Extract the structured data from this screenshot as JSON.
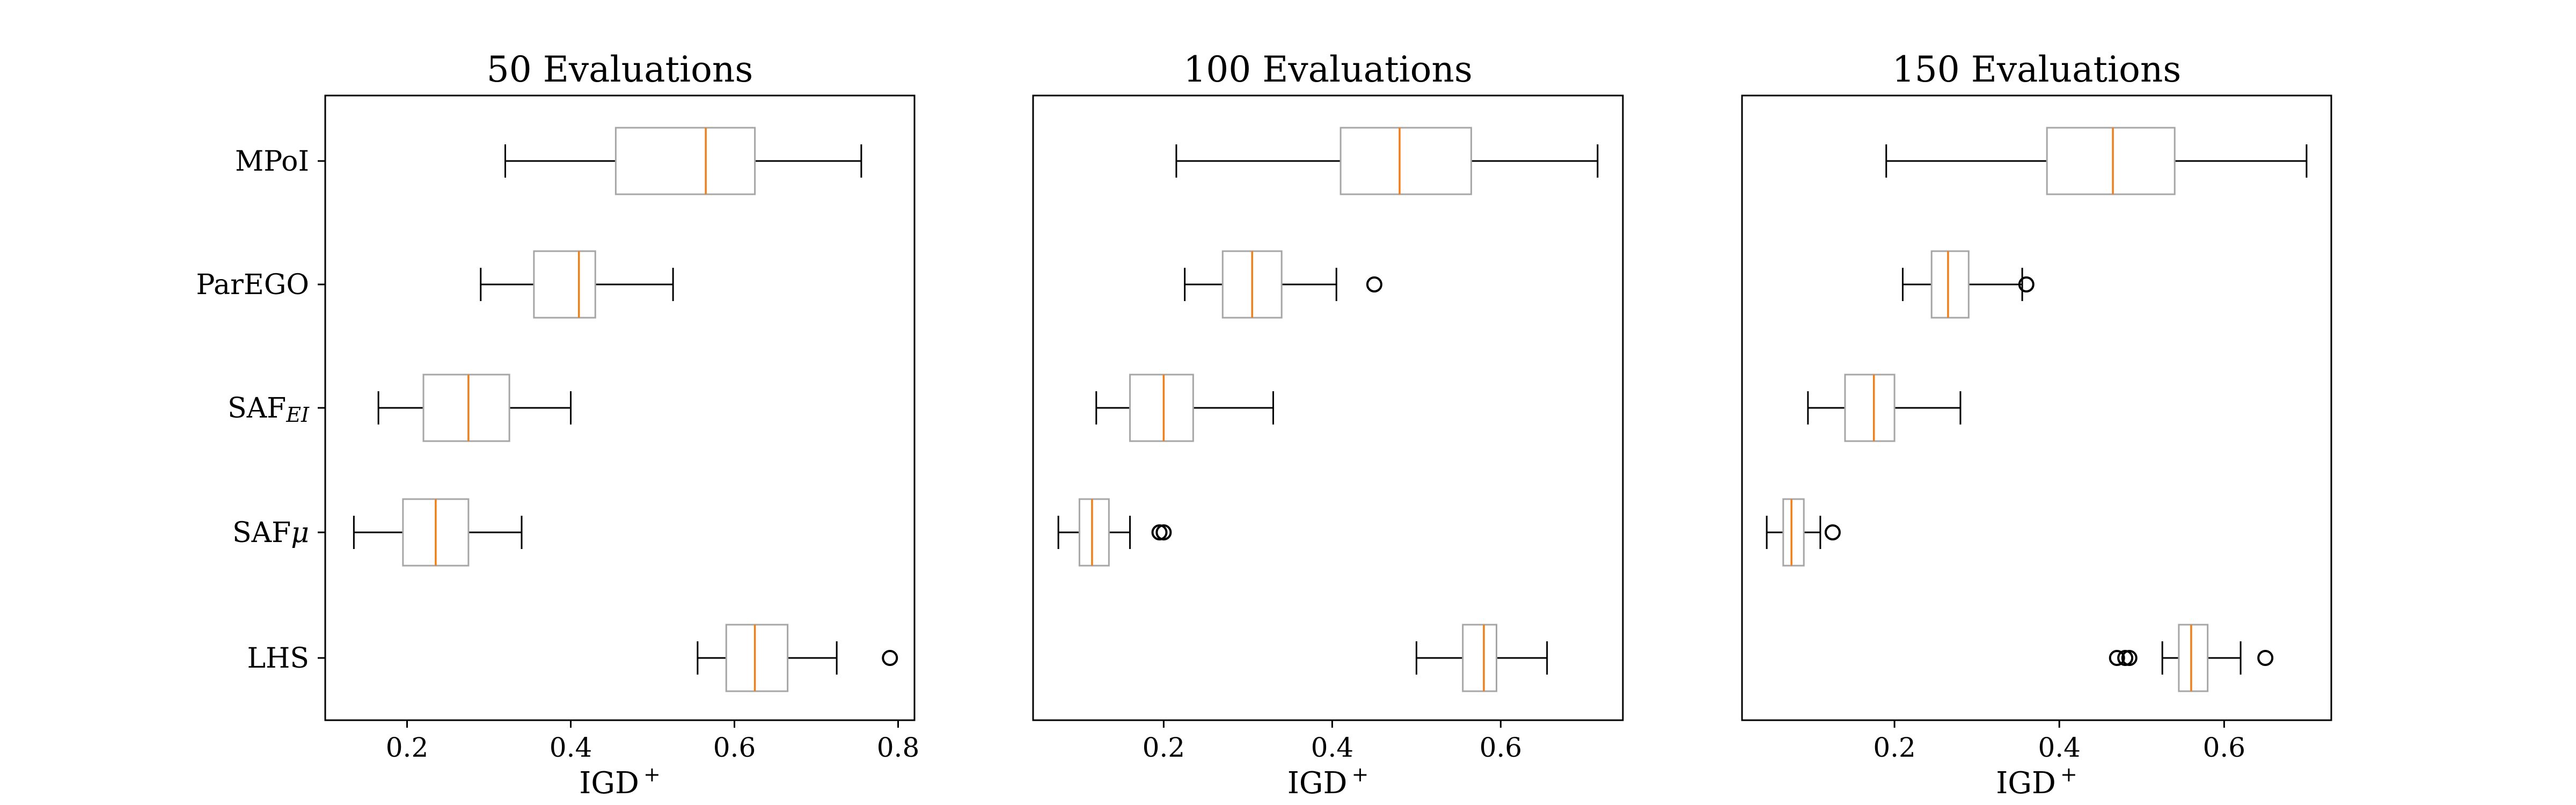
{
  "chart_data": [
    {
      "type": "boxplot",
      "title": "50 Evaluations",
      "xlabel": "IGD",
      "xlabel_sup": "+",
      "xlim": [
        0.1,
        0.82
      ],
      "xticks": [
        0.2,
        0.4,
        0.6,
        0.8
      ],
      "xtick_labels": [
        "0.2",
        "0.4",
        "0.6",
        "0.8"
      ],
      "show_categories": true,
      "series": [
        {
          "name": "MPoI",
          "whisker_low": 0.32,
          "q1": 0.455,
          "median": 0.565,
          "q3": 0.625,
          "whisker_high": 0.755,
          "outliers": []
        },
        {
          "name": "ParEGO",
          "whisker_low": 0.29,
          "q1": 0.355,
          "median": 0.41,
          "q3": 0.43,
          "whisker_high": 0.525,
          "outliers": []
        },
        {
          "name": "SAF",
          "sub": "EI",
          "whisker_low": 0.165,
          "q1": 0.22,
          "median": 0.275,
          "q3": 0.325,
          "whisker_high": 0.4,
          "outliers": []
        },
        {
          "name": "SAF",
          "sub": "μ",
          "whisker_low": 0.135,
          "q1": 0.195,
          "median": 0.235,
          "q3": 0.275,
          "whisker_high": 0.34,
          "outliers": []
        },
        {
          "name": "LHS",
          "whisker_low": 0.555,
          "q1": 0.59,
          "median": 0.625,
          "q3": 0.665,
          "whisker_high": 0.725,
          "outliers": [
            0.79
          ]
        }
      ]
    },
    {
      "type": "boxplot",
      "title": "100 Evaluations",
      "xlabel": "IGD",
      "xlabel_sup": "+",
      "xlim": [
        0.045,
        0.745
      ],
      "xticks": [
        0.2,
        0.4,
        0.6
      ],
      "xtick_labels": [
        "0.2",
        "0.4",
        "0.6"
      ],
      "show_categories": false,
      "series": [
        {
          "name": "MPoI",
          "whisker_low": 0.215,
          "q1": 0.41,
          "median": 0.48,
          "q3": 0.565,
          "whisker_high": 0.715,
          "outliers": []
        },
        {
          "name": "ParEGO",
          "whisker_low": 0.225,
          "q1": 0.27,
          "median": 0.305,
          "q3": 0.34,
          "whisker_high": 0.405,
          "outliers": [
            0.45
          ]
        },
        {
          "name": "SAF",
          "sub": "EI",
          "whisker_low": 0.12,
          "q1": 0.16,
          "median": 0.2,
          "q3": 0.235,
          "whisker_high": 0.33,
          "outliers": []
        },
        {
          "name": "SAF",
          "sub": "μ",
          "whisker_low": 0.075,
          "q1": 0.1,
          "median": 0.115,
          "q3": 0.135,
          "whisker_high": 0.16,
          "outliers": [
            0.195,
            0.2
          ]
        },
        {
          "name": "LHS",
          "whisker_low": 0.5,
          "q1": 0.555,
          "median": 0.58,
          "q3": 0.595,
          "whisker_high": 0.655,
          "outliers": []
        }
      ]
    },
    {
      "type": "boxplot",
      "title": "150 Evaluations",
      "xlabel": "IGD",
      "xlabel_sup": "+",
      "xlim": [
        0.015,
        0.73
      ],
      "xticks": [
        0.2,
        0.4,
        0.6
      ],
      "xtick_labels": [
        "0.2",
        "0.4",
        "0.6"
      ],
      "show_categories": false,
      "series": [
        {
          "name": "MPoI",
          "whisker_low": 0.19,
          "q1": 0.385,
          "median": 0.465,
          "q3": 0.54,
          "whisker_high": 0.7,
          "outliers": []
        },
        {
          "name": "ParEGO",
          "whisker_low": 0.21,
          "q1": 0.245,
          "median": 0.265,
          "q3": 0.29,
          "whisker_high": 0.355,
          "outliers": [
            0.36
          ]
        },
        {
          "name": "SAF",
          "sub": "EI",
          "whisker_low": 0.095,
          "q1": 0.14,
          "median": 0.175,
          "q3": 0.2,
          "whisker_high": 0.28,
          "outliers": []
        },
        {
          "name": "SAF",
          "sub": "μ",
          "whisker_low": 0.045,
          "q1": 0.065,
          "median": 0.075,
          "q3": 0.09,
          "whisker_high": 0.11,
          "outliers": [
            0.125
          ]
        },
        {
          "name": "LHS",
          "whisker_low": 0.525,
          "q1": 0.545,
          "median": 0.56,
          "q3": 0.58,
          "whisker_high": 0.62,
          "outliers": [
            0.47,
            0.48,
            0.485,
            0.65
          ]
        }
      ]
    }
  ]
}
